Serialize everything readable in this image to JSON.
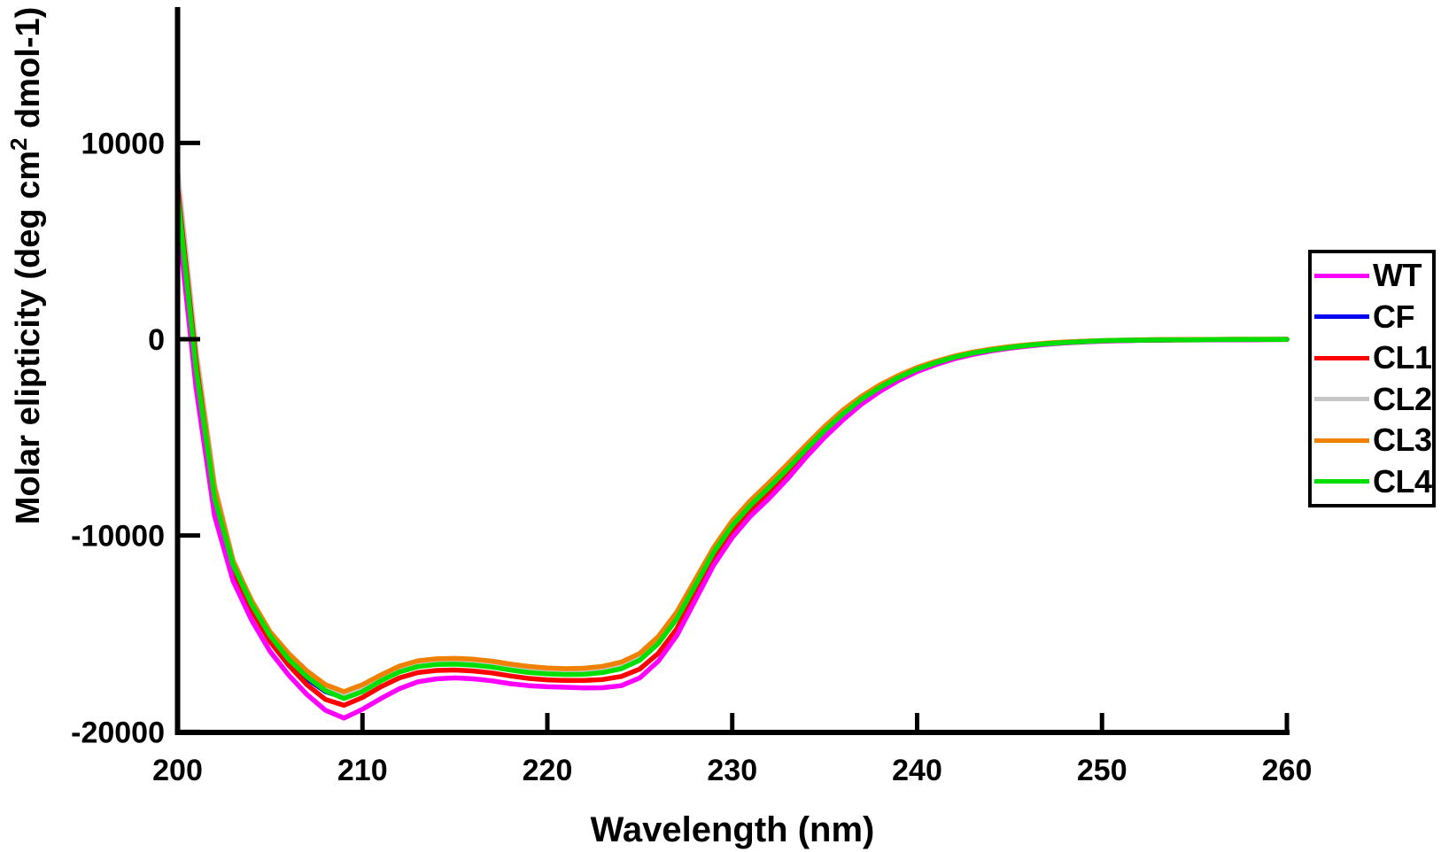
{
  "figure": {
    "background": "#FFFFFF",
    "axis_color": "#000000",
    "text_color": "#000000"
  },
  "y_axis": {
    "title_prefix": "Molar elipticity (deg cm",
    "title_sup": "2",
    "title_suffix": " dmol-1)",
    "tick_labels": [
      "10000",
      "0",
      "-10000",
      "-20000"
    ],
    "tick_values": [
      10000,
      0,
      -10000,
      -20000
    ]
  },
  "x_axis": {
    "title": "Wavelength (nm)",
    "tick_labels": [
      "200",
      "210",
      "220",
      "230",
      "240",
      "250",
      "260"
    ],
    "tick_values": [
      200,
      210,
      220,
      230,
      240,
      250,
      260
    ]
  },
  "chart_data": {
    "type": "line",
    "title": "",
    "xlabel": "Wavelength (nm)",
    "ylabel": "Molar elipticity (deg cm2 dmol-1)",
    "xlim": [
      200,
      260
    ],
    "ylim": [
      -20000,
      16900
    ],
    "grid": false,
    "legend_position": "right",
    "x": [
      200,
      201,
      202,
      203,
      204,
      205,
      206,
      207,
      208,
      209,
      210,
      211,
      212,
      213,
      214,
      215,
      216,
      217,
      218,
      219,
      220,
      221,
      222,
      223,
      224,
      225,
      226,
      227,
      228,
      229,
      230,
      231,
      232,
      233,
      234,
      235,
      236,
      237,
      238,
      239,
      240,
      241,
      242,
      243,
      244,
      245,
      246,
      247,
      248,
      249,
      250,
      251,
      252,
      253,
      254,
      255,
      256,
      257,
      258,
      259,
      260
    ],
    "series": [
      {
        "name": "WT",
        "color": "#FF00FF",
        "values": [
          6300,
          -2500,
          -9000,
          -12300,
          -14300,
          -15900,
          -17100,
          -18100,
          -18900,
          -19300,
          -18850,
          -18300,
          -17800,
          -17450,
          -17300,
          -17250,
          -17300,
          -17400,
          -17550,
          -17650,
          -17700,
          -17730,
          -17760,
          -17750,
          -17650,
          -17250,
          -16400,
          -15100,
          -13300,
          -11500,
          -10100,
          -9000,
          -8100,
          -7100,
          -6000,
          -5000,
          -4100,
          -3300,
          -2650,
          -2100,
          -1650,
          -1300,
          -1000,
          -780,
          -600,
          -460,
          -350,
          -260,
          -190,
          -140,
          -100,
          -80,
          -60,
          -50,
          -40,
          -40,
          -30,
          -30,
          -30,
          -20,
          -20
        ]
      },
      {
        "name": "CF",
        "color": "#0000F0",
        "values": [
          6500,
          -2000,
          -8600,
          -11900,
          -13800,
          -15300,
          -16400,
          -17300,
          -17950,
          -18250,
          -17900,
          -17350,
          -16900,
          -16620,
          -16500,
          -16480,
          -16520,
          -16620,
          -16770,
          -16900,
          -16970,
          -17000,
          -16990,
          -16900,
          -16700,
          -16270,
          -15430,
          -14180,
          -12480,
          -10780,
          -9430,
          -8380,
          -7480,
          -6530,
          -5530,
          -4580,
          -3730,
          -3000,
          -2400,
          -1900,
          -1500,
          -1170,
          -900,
          -690,
          -530,
          -400,
          -300,
          -220,
          -160,
          -110,
          -80,
          -60,
          -40,
          -30,
          -30,
          -20,
          -20,
          -10,
          -10,
          -10,
          0
        ]
      },
      {
        "name": "CL1",
        "color": "#FF0000",
        "values": [
          7800,
          -1200,
          -8400,
          -11800,
          -13800,
          -15400,
          -16600,
          -17600,
          -18350,
          -18650,
          -18250,
          -17700,
          -17250,
          -16980,
          -16870,
          -16850,
          -16900,
          -17000,
          -17150,
          -17280,
          -17350,
          -17380,
          -17380,
          -17330,
          -17180,
          -16800,
          -16000,
          -14750,
          -13000,
          -11250,
          -9850,
          -8750,
          -7850,
          -6850,
          -5800,
          -4850,
          -3950,
          -3200,
          -2550,
          -2000,
          -1580,
          -1240,
          -950,
          -740,
          -570,
          -440,
          -330,
          -240,
          -180,
          -130,
          -90,
          -70,
          -60,
          -50,
          -40,
          -30,
          -30,
          -20,
          -20,
          -20,
          -10
        ]
      },
      {
        "name": "CL2",
        "color": "#C6C6C6",
        "values": [
          8600,
          -500,
          -7400,
          -11200,
          -13400,
          -15000,
          -16200,
          -17100,
          -17800,
          -18100,
          -17750,
          -17250,
          -16800,
          -16530,
          -16420,
          -16400,
          -16440,
          -16540,
          -16690,
          -16820,
          -16900,
          -16930,
          -16920,
          -16830,
          -16630,
          -16200,
          -15350,
          -14100,
          -12400,
          -10700,
          -9350,
          -8300,
          -7400,
          -6450,
          -5450,
          -4500,
          -3650,
          -2950,
          -2350,
          -1870,
          -1470,
          -1150,
          -880,
          -680,
          -520,
          -390,
          -290,
          -210,
          -150,
          -110,
          -70,
          -50,
          -40,
          -30,
          -20,
          -20,
          -10,
          -10,
          -10,
          0,
          0
        ]
      },
      {
        "name": "CL3",
        "color": "#F08000",
        "values": [
          7700,
          -1000,
          -7600,
          -11300,
          -13300,
          -14900,
          -16000,
          -16900,
          -17600,
          -17950,
          -17600,
          -17100,
          -16650,
          -16380,
          -16280,
          -16260,
          -16300,
          -16400,
          -16550,
          -16670,
          -16750,
          -16780,
          -16760,
          -16660,
          -16450,
          -16000,
          -15150,
          -13900,
          -12250,
          -10600,
          -9250,
          -8200,
          -7300,
          -6350,
          -5380,
          -4450,
          -3600,
          -2900,
          -2320,
          -1840,
          -1440,
          -1130,
          -860,
          -660,
          -500,
          -380,
          -280,
          -200,
          -140,
          -100,
          -70,
          -50,
          -30,
          -20,
          -20,
          -10,
          -10,
          0,
          0,
          0,
          0
        ]
      },
      {
        "name": "CL4",
        "color": "#00DF00",
        "values": [
          7400,
          -1500,
          -8100,
          -11500,
          -13500,
          -15100,
          -16300,
          -17200,
          -17900,
          -18300,
          -17950,
          -17400,
          -16950,
          -16680,
          -16570,
          -16550,
          -16600,
          -16700,
          -16850,
          -16980,
          -17050,
          -17080,
          -17070,
          -16980,
          -16780,
          -16350,
          -15500,
          -14250,
          -12550,
          -10850,
          -9500,
          -8450,
          -7550,
          -6600,
          -5600,
          -4650,
          -3800,
          -3050,
          -2450,
          -1950,
          -1530,
          -1200,
          -920,
          -710,
          -550,
          -420,
          -310,
          -230,
          -170,
          -120,
          -80,
          -60,
          -50,
          -40,
          -30,
          -30,
          -20,
          -20,
          -10,
          -10,
          -10
        ]
      }
    ],
    "draw_order": [
      "CF",
      "CL2",
      "CL3",
      "CL1",
      "WT",
      "CL4"
    ]
  }
}
